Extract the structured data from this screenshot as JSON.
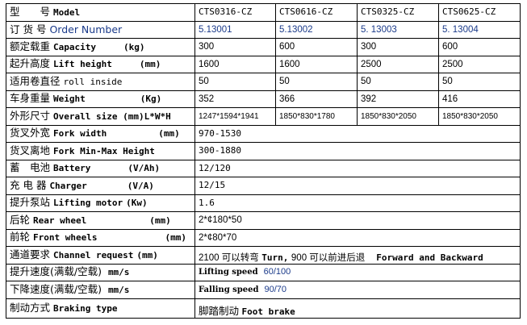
{
  "rows": [
    {
      "zh": "型　　号",
      "en": "Model",
      "unit": "",
      "vals": [
        "CTS0316-CZ",
        "CTS0616-CZ",
        "CTS0325-CZ",
        "CTS0625-CZ"
      ]
    },
    {
      "zh": "订 货 号",
      "en": "Order Number",
      "unit": "",
      "vals": [
        "5.13001",
        "5.13002",
        "5. 13003",
        "5. 13004"
      ]
    },
    {
      "zh": "额定载重",
      "en": "Capacity",
      "unit": "(kg)",
      "vals": [
        "300",
        "600",
        "300",
        "600"
      ]
    },
    {
      "zh": "起升高度",
      "en": "Lift height",
      "unit": "(mm)",
      "vals": [
        "1600",
        "1600",
        "2500",
        "2500"
      ]
    },
    {
      "zh": "适用卷直径",
      "en": "roll inside",
      "unit": "",
      "vals": [
        "50",
        "50",
        "50",
        "50"
      ]
    },
    {
      "zh": "车身重量",
      "en": "Weight",
      "unit": "(Kg)",
      "vals": [
        "352",
        "366",
        "392",
        "416"
      ]
    },
    {
      "zh": "外形尺寸",
      "en": "Overall size (mm)L*W*H",
      "unit": "",
      "vals": [
        "1247*1594*1941",
        "1850*830*1780",
        "1850*830*2050",
        "1850*830*2050"
      ]
    },
    {
      "zh": "货叉外宽",
      "en": "Fork width",
      "unit": "(mm)",
      "value": "970-1530"
    },
    {
      "zh": "货叉离地",
      "en": "Fork Min-Max Height",
      "unit": "",
      "value": "300-1880"
    },
    {
      "zh": "蓄　电池",
      "en": "Battery",
      "unit": "(V/Ah)",
      "value": "12/120"
    },
    {
      "zh": "充 电 器",
      "en": "Charger",
      "unit": "(V/A)",
      "value": "12/15"
    },
    {
      "zh": "提升泵站",
      "en": "Lifting motor",
      "unit": "(Kw)",
      "value": "1.6"
    },
    {
      "zh": "后轮",
      "en": "Rear wheel",
      "unit": "(mm)",
      "value": "2*¢180*50"
    },
    {
      "zh": "前轮",
      "en": "Front wheels",
      "unit": "(mm)",
      "value": "2*¢80*70"
    },
    {
      "zh": "通道要求",
      "en": "Channel request",
      "unit": "(mm)",
      "value_parts": [
        "2100 可以转弯",
        "Turn,",
        "900 可以前进后退",
        "Forward and Backward"
      ]
    },
    {
      "zh": "提升速度(满载/空载)",
      "en": "",
      "unit": "mm/s",
      "speed_label": "Lifting speed",
      "speed_value": "60/100"
    },
    {
      "zh": "下降速度(满载/空载)",
      "en": "",
      "unit": "mm/s",
      "speed_label": "Falling speed",
      "speed_value": "90/70"
    },
    {
      "zh": "制动方式",
      "en": "Braking type",
      "unit": "",
      "value_parts": [
        "脚踏制动",
        "Foot brake"
      ]
    }
  ]
}
